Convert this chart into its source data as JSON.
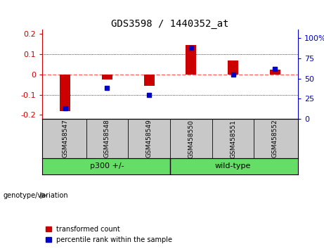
{
  "title": "GDS3598 / 1440352_at",
  "samples": [
    "GSM458547",
    "GSM458548",
    "GSM458549",
    "GSM458550",
    "GSM458551",
    "GSM458552"
  ],
  "red_values": [
    -0.18,
    -0.025,
    -0.055,
    0.145,
    0.07,
    0.025
  ],
  "blue_values_pct": [
    13,
    38,
    30,
    88,
    55,
    62
  ],
  "ylim_left": [
    -0.22,
    0.22
  ],
  "ylim_right": [
    0,
    110
  ],
  "yticks_left": [
    -0.2,
    -0.1,
    0.0,
    0.1,
    0.2
  ],
  "yticks_right": [
    0,
    25,
    50,
    75,
    100
  ],
  "ytick_labels_left": [
    "-0.2",
    "-0.1",
    "0",
    "0.1",
    "0.2"
  ],
  "ytick_labels_right": [
    "0",
    "25",
    "50",
    "75",
    "100%"
  ],
  "bar_width": 0.25,
  "red_color": "#CC0000",
  "blue_color": "#0000CC",
  "zero_line_color": "#FF6666",
  "grid_color": "#000000",
  "bg_color": "#FFFFFF",
  "plot_bg_color": "#FFFFFF",
  "label_bg_color": "#C8C8C8",
  "group_bg_color": "#66DD66",
  "legend_red": "transformed count",
  "legend_blue": "percentile rank within the sample",
  "x_positions": [
    0,
    1,
    2,
    3,
    4,
    5
  ],
  "group1_label": "p300 +/-",
  "group2_label": "wild-type",
  "geno_label": "genotype/variation"
}
